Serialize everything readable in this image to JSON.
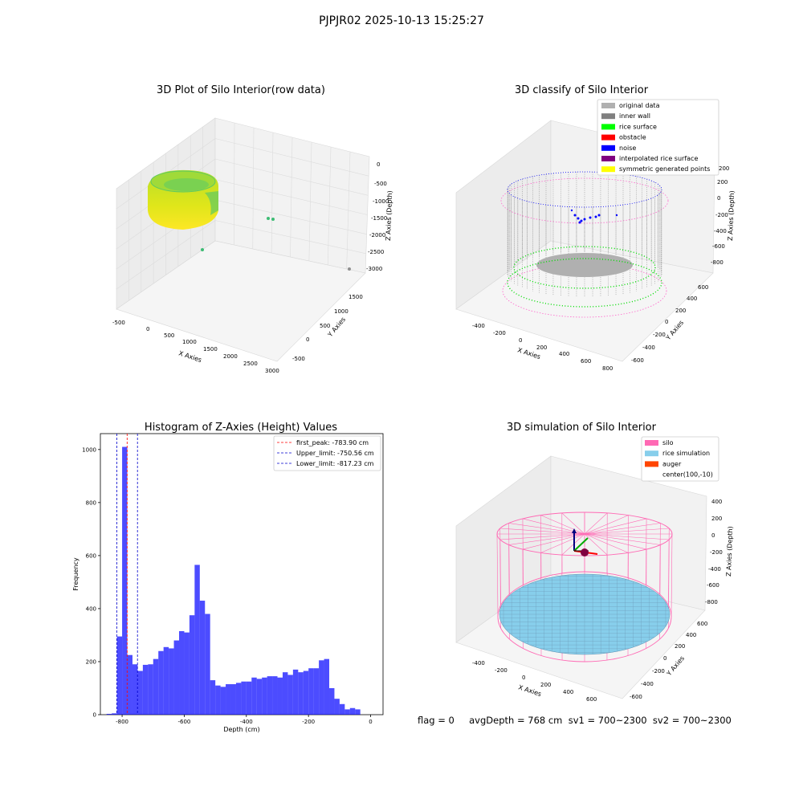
{
  "figure": {
    "title": "PJPJR02 2025-10-13 15:25:27",
    "status_line": "flag = 0     avgDepth = 768 cm  sv1 = 700~2300  sv2 = 700~2300"
  },
  "panels": {
    "raw": {
      "title": "3D Plot of Silo Interior(row data)",
      "xlabel": "X Axies",
      "ylabel": "Y Axies",
      "zlabel": "Z Axies (Depth)",
      "xticks": [
        "-500",
        "0",
        "500",
        "1000",
        "1500",
        "2000",
        "2500",
        "3000"
      ],
      "yticks": [
        "-500",
        "0",
        "500",
        "1000",
        "1500"
      ],
      "zticks": [
        "0",
        "-500",
        "-1000",
        "-1500",
        "-2000",
        "-2500",
        "-3000"
      ]
    },
    "classify": {
      "title": "3D classify of Silo Interior",
      "xlabel": "X Axies",
      "ylabel": "Y Axies",
      "zlabel": "Z Axies (Depth)",
      "xticks": [
        "-400",
        "-200",
        "0",
        "200",
        "400",
        "600",
        "800"
      ],
      "yticks": [
        "-600",
        "-400",
        "-200",
        "0",
        "200",
        "400",
        "600"
      ],
      "zticks": [
        "200",
        "0",
        "-200",
        "-400",
        "-600",
        "-800"
      ],
      "legend": [
        {
          "label": "original data",
          "color": "#b0b0b0"
        },
        {
          "label": "inner wall",
          "color": "#808080"
        },
        {
          "label": "rice surface",
          "color": "#00ff00"
        },
        {
          "label": "obstacle",
          "color": "#ff0000"
        },
        {
          "label": "noise",
          "color": "#0000ff"
        },
        {
          "label": "interpolated rice surface",
          "color": "#800080"
        },
        {
          "label": "symmetric generated points",
          "color": "#ffff00"
        }
      ]
    },
    "simulation": {
      "title": "3D simulation of Silo Interior",
      "xlabel": "X Axies",
      "ylabel": "Y Axies",
      "zlabel": "Z Axies (Depth)",
      "xticks": [
        "-400",
        "-200",
        "0",
        "200",
        "400",
        "600"
      ],
      "yticks": [
        "-600",
        "-400",
        "-200",
        "0",
        "200",
        "400",
        "600"
      ],
      "zticks": [
        "400",
        "200",
        "0",
        "-200",
        "-400",
        "-600",
        "-800"
      ],
      "legend": [
        {
          "label": "silo",
          "color": "#ff69b4"
        },
        {
          "label": "rice simulation",
          "color": "#87ceeb"
        },
        {
          "label": "auger",
          "color": "#ff4500"
        },
        {
          "label": "center(100,-10)",
          "color": ""
        }
      ]
    }
  },
  "chart_data": {
    "type": "bar",
    "title": "Histogram of Z-Axies (Height) Values",
    "xlabel": "Depth (cm)",
    "ylabel": "Frequency",
    "xlim": [
      -870,
      40
    ],
    "ylim": [
      0,
      1060
    ],
    "bin_start": -850,
    "bin_width": 16.67,
    "values": [
      3,
      5,
      295,
      1010,
      225,
      190,
      165,
      188,
      190,
      210,
      240,
      255,
      250,
      280,
      315,
      310,
      375,
      565,
      430,
      380,
      130,
      110,
      105,
      115,
      115,
      120,
      125,
      125,
      140,
      135,
      140,
      145,
      145,
      140,
      160,
      150,
      170,
      160,
      165,
      175,
      175,
      205,
      210,
      100,
      60,
      40,
      20,
      25,
      20
    ],
    "xticks": [
      -800,
      -600,
      -400,
      -200,
      0
    ],
    "yticks": [
      0,
      200,
      400,
      600,
      800,
      1000
    ],
    "bar_color": "#0000ff",
    "lines": [
      {
        "label": "first_peak: -783.90 cm",
        "x": -783.9,
        "color": "#ff0000"
      },
      {
        "label": "Upper_limit: -750.56 cm",
        "x": -750.56,
        "color": "#0000cc"
      },
      {
        "label": "Lower_limit: -817.23 cm",
        "x": -817.23,
        "color": "#0000cc"
      }
    ],
    "legend_position": "top-right"
  }
}
